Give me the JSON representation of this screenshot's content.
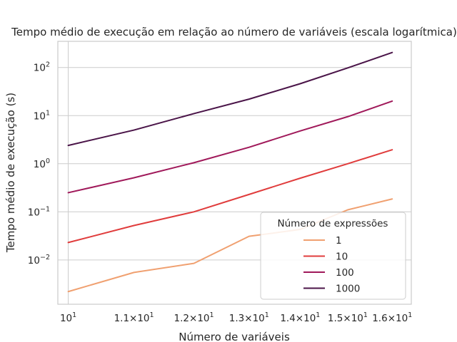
{
  "chart_data": {
    "type": "line",
    "title": "Tempo médio de execução em relação ao número de variáveis (escala logarítmica)",
    "xlabel": "Número de variáveis",
    "ylabel": "Tempo médio de execução (s)",
    "x_scale": "log",
    "y_scale": "log",
    "xlim": [
      9.85,
      16.45
    ],
    "ylim": [
      0.0012,
      350
    ],
    "grid": true,
    "x": [
      10,
      11,
      12,
      13,
      14,
      15,
      16
    ],
    "x_ticks": [
      {
        "value": 10,
        "base": "10",
        "exp": "1"
      },
      {
        "value": 11,
        "base": "1.1×10",
        "exp": "1"
      },
      {
        "value": 12,
        "base": "1.2×10",
        "exp": "1"
      },
      {
        "value": 13,
        "base": "1.3×10",
        "exp": "1"
      },
      {
        "value": 14,
        "base": "1.4×10",
        "exp": "1"
      },
      {
        "value": 15,
        "base": "1.5×10",
        "exp": "1"
      },
      {
        "value": 16,
        "base": "1.6×10",
        "exp": "1"
      }
    ],
    "y_ticks": [
      {
        "value": 0.01,
        "base": "10",
        "exp": "−2"
      },
      {
        "value": 0.1,
        "base": "10",
        "exp": "−1"
      },
      {
        "value": 1,
        "base": "10",
        "exp": "0"
      },
      {
        "value": 10,
        "base": "10",
        "exp": "1"
      },
      {
        "value": 100,
        "base": "10",
        "exp": "2"
      }
    ],
    "legend": {
      "title": "Número de expressões",
      "position": "lower-right"
    },
    "series": [
      {
        "name": "1",
        "color": "#f0a070",
        "values": [
          0.0022,
          0.0055,
          0.0085,
          0.031,
          0.043,
          0.11,
          0.185
        ]
      },
      {
        "name": "10",
        "color": "#e03c3c",
        "values": [
          0.023,
          0.052,
          0.1,
          0.23,
          0.5,
          1.0,
          1.95
        ]
      },
      {
        "name": "100",
        "color": "#a0195a",
        "values": [
          0.25,
          0.51,
          1.05,
          2.2,
          4.8,
          9.5,
          20
        ]
      },
      {
        "name": "1000",
        "color": "#4a1448",
        "values": [
          2.4,
          5.0,
          11,
          22,
          46,
          98,
          205
        ]
      }
    ]
  }
}
